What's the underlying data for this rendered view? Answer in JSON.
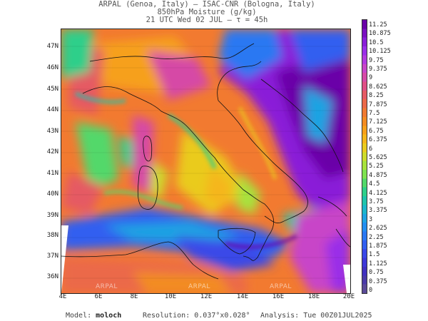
{
  "header": {
    "line1": "ARPAL (Genoa, Italy)  –  ISAC-CNR (Bologna, Italy)",
    "line2": "850hPa Moisture (g/kg)",
    "line3": "21 UTC Wed 02 JUL  –  τ = 45h"
  },
  "map": {
    "lat_labels": [
      "47N",
      "46N",
      "45N",
      "44N",
      "43N",
      "42N",
      "41N",
      "40N",
      "39N",
      "38N",
      "37N",
      "36N"
    ],
    "lon_labels": [
      "4E",
      "6E",
      "8E",
      "10E",
      "12E",
      "14E",
      "16E",
      "18E",
      "20E"
    ],
    "watermarks": [
      "ARPAL",
      "ARPAL",
      "ARPAL"
    ]
  },
  "colorbar": {
    "labels": [
      "11.25",
      "10.875",
      "10.5",
      "10.125",
      "9.75",
      "9.375",
      "9",
      "8.625",
      "8.25",
      "7.875",
      "7.5",
      "7.125",
      "6.75",
      "6.375",
      "6",
      "5.625",
      "5.25",
      "4.875",
      "4.5",
      "4.125",
      "3.75",
      "3.375",
      "3",
      "2.625",
      "2.25",
      "1.875",
      "1.5",
      "1.125",
      "0.75",
      "0.375",
      "0"
    ],
    "colors": [
      "#6a00a8",
      "#7a10c0",
      "#8a1ed8",
      "#9a2ee8",
      "#b23adf",
      "#c845c8",
      "#d64aa6",
      "#df4f85",
      "#e55a64",
      "#eb6948",
      "#ef7a32",
      "#f38c22",
      "#f6a01a",
      "#f5b61a",
      "#eacb1e",
      "#cddb2a",
      "#a8e23c",
      "#7ee250",
      "#52d86a",
      "#2fcf8a",
      "#1fc4ab",
      "#1bb6cb",
      "#1ea3e2",
      "#238ef0",
      "#2a78f2",
      "#325ff0",
      "#3a48e8",
      "#3d38d8",
      "#4030c0",
      "#4a3aa8",
      "#5a4a98"
    ]
  },
  "footer": {
    "model_label": "Model:",
    "model_value": "moloch",
    "resolution_label": "Resolution:",
    "resolution_value": "0.037°x0.028°",
    "analysis_label": "Analysis:",
    "analysis_value": "Tue 00Z01JUL2025"
  }
}
